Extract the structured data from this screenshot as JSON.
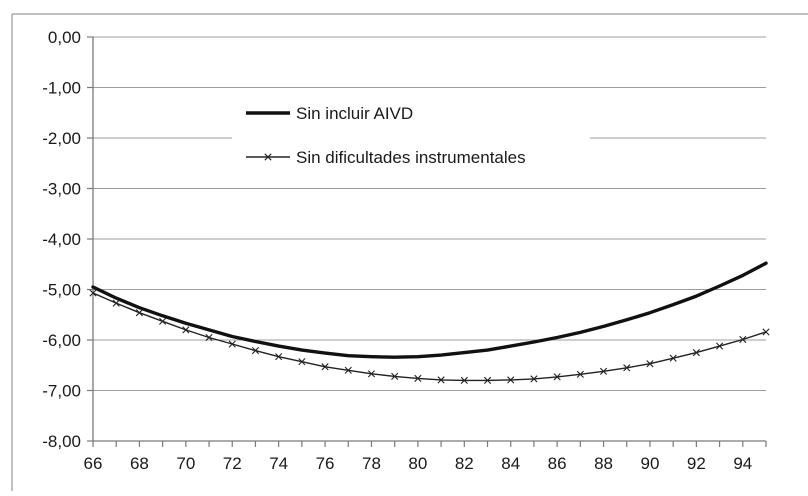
{
  "chart_data": {
    "type": "line",
    "title": "",
    "xlabel": "",
    "ylabel": "",
    "xlim": [
      66,
      95
    ],
    "ylim": [
      -8,
      0
    ],
    "x_ticks": [
      66,
      68,
      70,
      72,
      74,
      76,
      78,
      80,
      82,
      84,
      86,
      88,
      90,
      92,
      94
    ],
    "x_tick_labels": [
      "66",
      "68",
      "70",
      "72",
      "74",
      "76",
      "78",
      "80",
      "82",
      "84",
      "86",
      "88",
      "90",
      "92",
      "94"
    ],
    "y_ticks": [
      0,
      -1,
      -2,
      -3,
      -4,
      -5,
      -6,
      -7,
      -8
    ],
    "y_tick_labels": [
      "0,00",
      "-1,00",
      "-2,00",
      "-3,00",
      "-4,00",
      "-5,00",
      "-6,00",
      "-7,00",
      "-8,00"
    ],
    "grid": "horizontal",
    "legend_position": "upper-center",
    "x": [
      66,
      67,
      68,
      69,
      70,
      71,
      72,
      73,
      74,
      75,
      76,
      77,
      78,
      79,
      80,
      81,
      82,
      83,
      84,
      85,
      86,
      87,
      88,
      89,
      90,
      91,
      92,
      93,
      94,
      95
    ],
    "series": [
      {
        "name": "Sin incluir AIVD",
        "color": "#111111",
        "marker": "none",
        "values": [
          -4.95,
          -5.17,
          -5.36,
          -5.52,
          -5.67,
          -5.8,
          -5.93,
          -6.03,
          -6.12,
          -6.2,
          -6.26,
          -6.31,
          -6.33,
          -6.34,
          -6.33,
          -6.3,
          -6.25,
          -6.2,
          -6.12,
          -6.04,
          -5.95,
          -5.85,
          -5.73,
          -5.6,
          -5.46,
          -5.3,
          -5.13,
          -4.93,
          -4.72,
          -4.48
        ]
      },
      {
        "name": "Sin dificultades instrumentales",
        "color": "#222222",
        "marker": "x",
        "values": [
          -5.07,
          -5.27,
          -5.46,
          -5.63,
          -5.8,
          -5.95,
          -6.08,
          -6.21,
          -6.33,
          -6.43,
          -6.53,
          -6.6,
          -6.67,
          -6.72,
          -6.76,
          -6.79,
          -6.8,
          -6.8,
          -6.79,
          -6.77,
          -6.73,
          -6.68,
          -6.62,
          -6.55,
          -6.47,
          -6.36,
          -6.25,
          -6.12,
          -5.99,
          -5.84
        ]
      }
    ]
  }
}
